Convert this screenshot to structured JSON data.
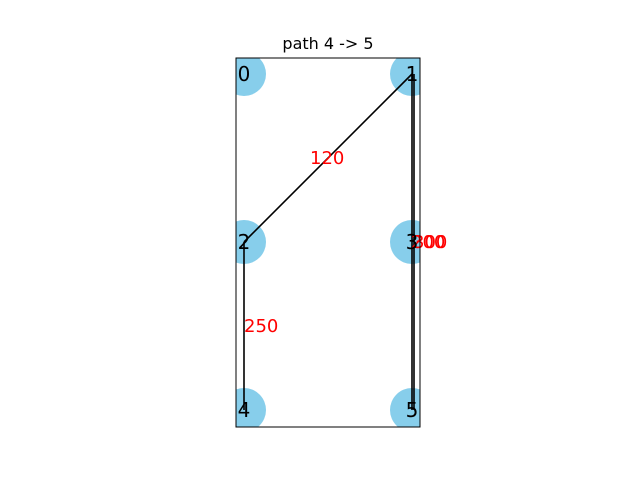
{
  "title": "path 4 -> 5",
  "colors": {
    "node_fill": "#87ceeb",
    "edge": "#000000",
    "edge_label": "#ff0000",
    "frame": "#000000"
  },
  "nodes": [
    {
      "id": "0",
      "label": "0",
      "col": 0,
      "row": 0
    },
    {
      "id": "1",
      "label": "1",
      "col": 1,
      "row": 0
    },
    {
      "id": "2",
      "label": "2",
      "col": 0,
      "row": 1
    },
    {
      "id": "3",
      "label": "3",
      "col": 1,
      "row": 1
    },
    {
      "id": "4",
      "label": "4",
      "col": 0,
      "row": 2
    },
    {
      "id": "5",
      "label": "5",
      "col": 1,
      "row": 2
    }
  ],
  "edges": [
    {
      "from": "1",
      "to": "2",
      "label": "120"
    },
    {
      "from": "1",
      "to": "5",
      "label": "200"
    },
    {
      "from": "2",
      "to": "4",
      "label": "250"
    },
    {
      "from": "5",
      "to": "1",
      "label": "300"
    }
  ]
}
